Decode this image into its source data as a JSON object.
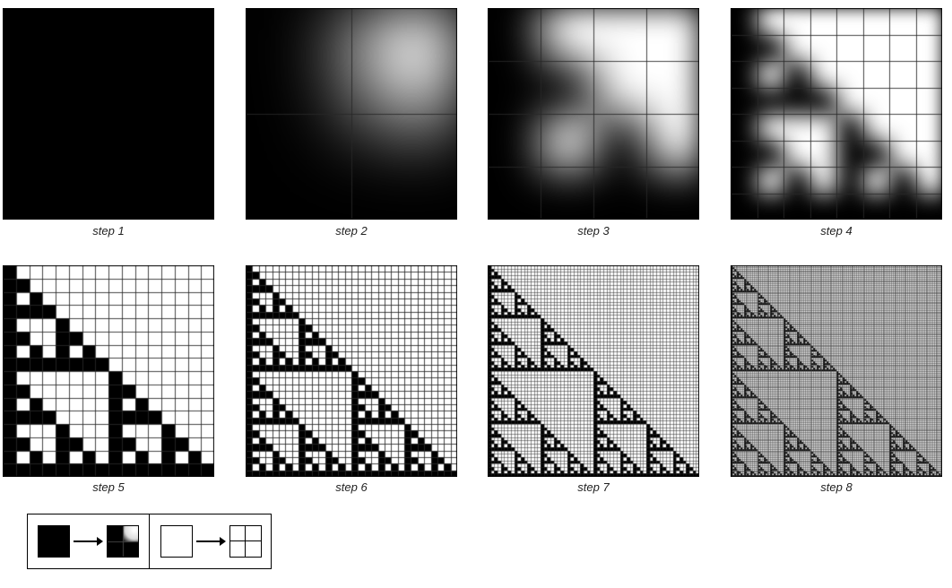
{
  "steps": [
    {
      "label": "step 1",
      "level": 0,
      "blur": true
    },
    {
      "label": "step 2",
      "level": 1,
      "blur": true
    },
    {
      "label": "step 3",
      "level": 2,
      "blur": true
    },
    {
      "label": "step 4",
      "level": 3,
      "blur": true
    },
    {
      "label": "step 5",
      "level": 4,
      "blur": false
    },
    {
      "label": "step 6",
      "level": 5,
      "blur": false
    },
    {
      "label": "step 7",
      "level": 6,
      "blur": false
    },
    {
      "label": "step 8",
      "level": 7,
      "blur": false
    }
  ],
  "legend": {
    "rules": [
      {
        "from": "black",
        "to": "black-with-white-top-right"
      },
      {
        "from": "white",
        "to": "white-subdivided"
      }
    ]
  },
  "colors": {
    "black": "#000000",
    "white": "#ffffff"
  }
}
